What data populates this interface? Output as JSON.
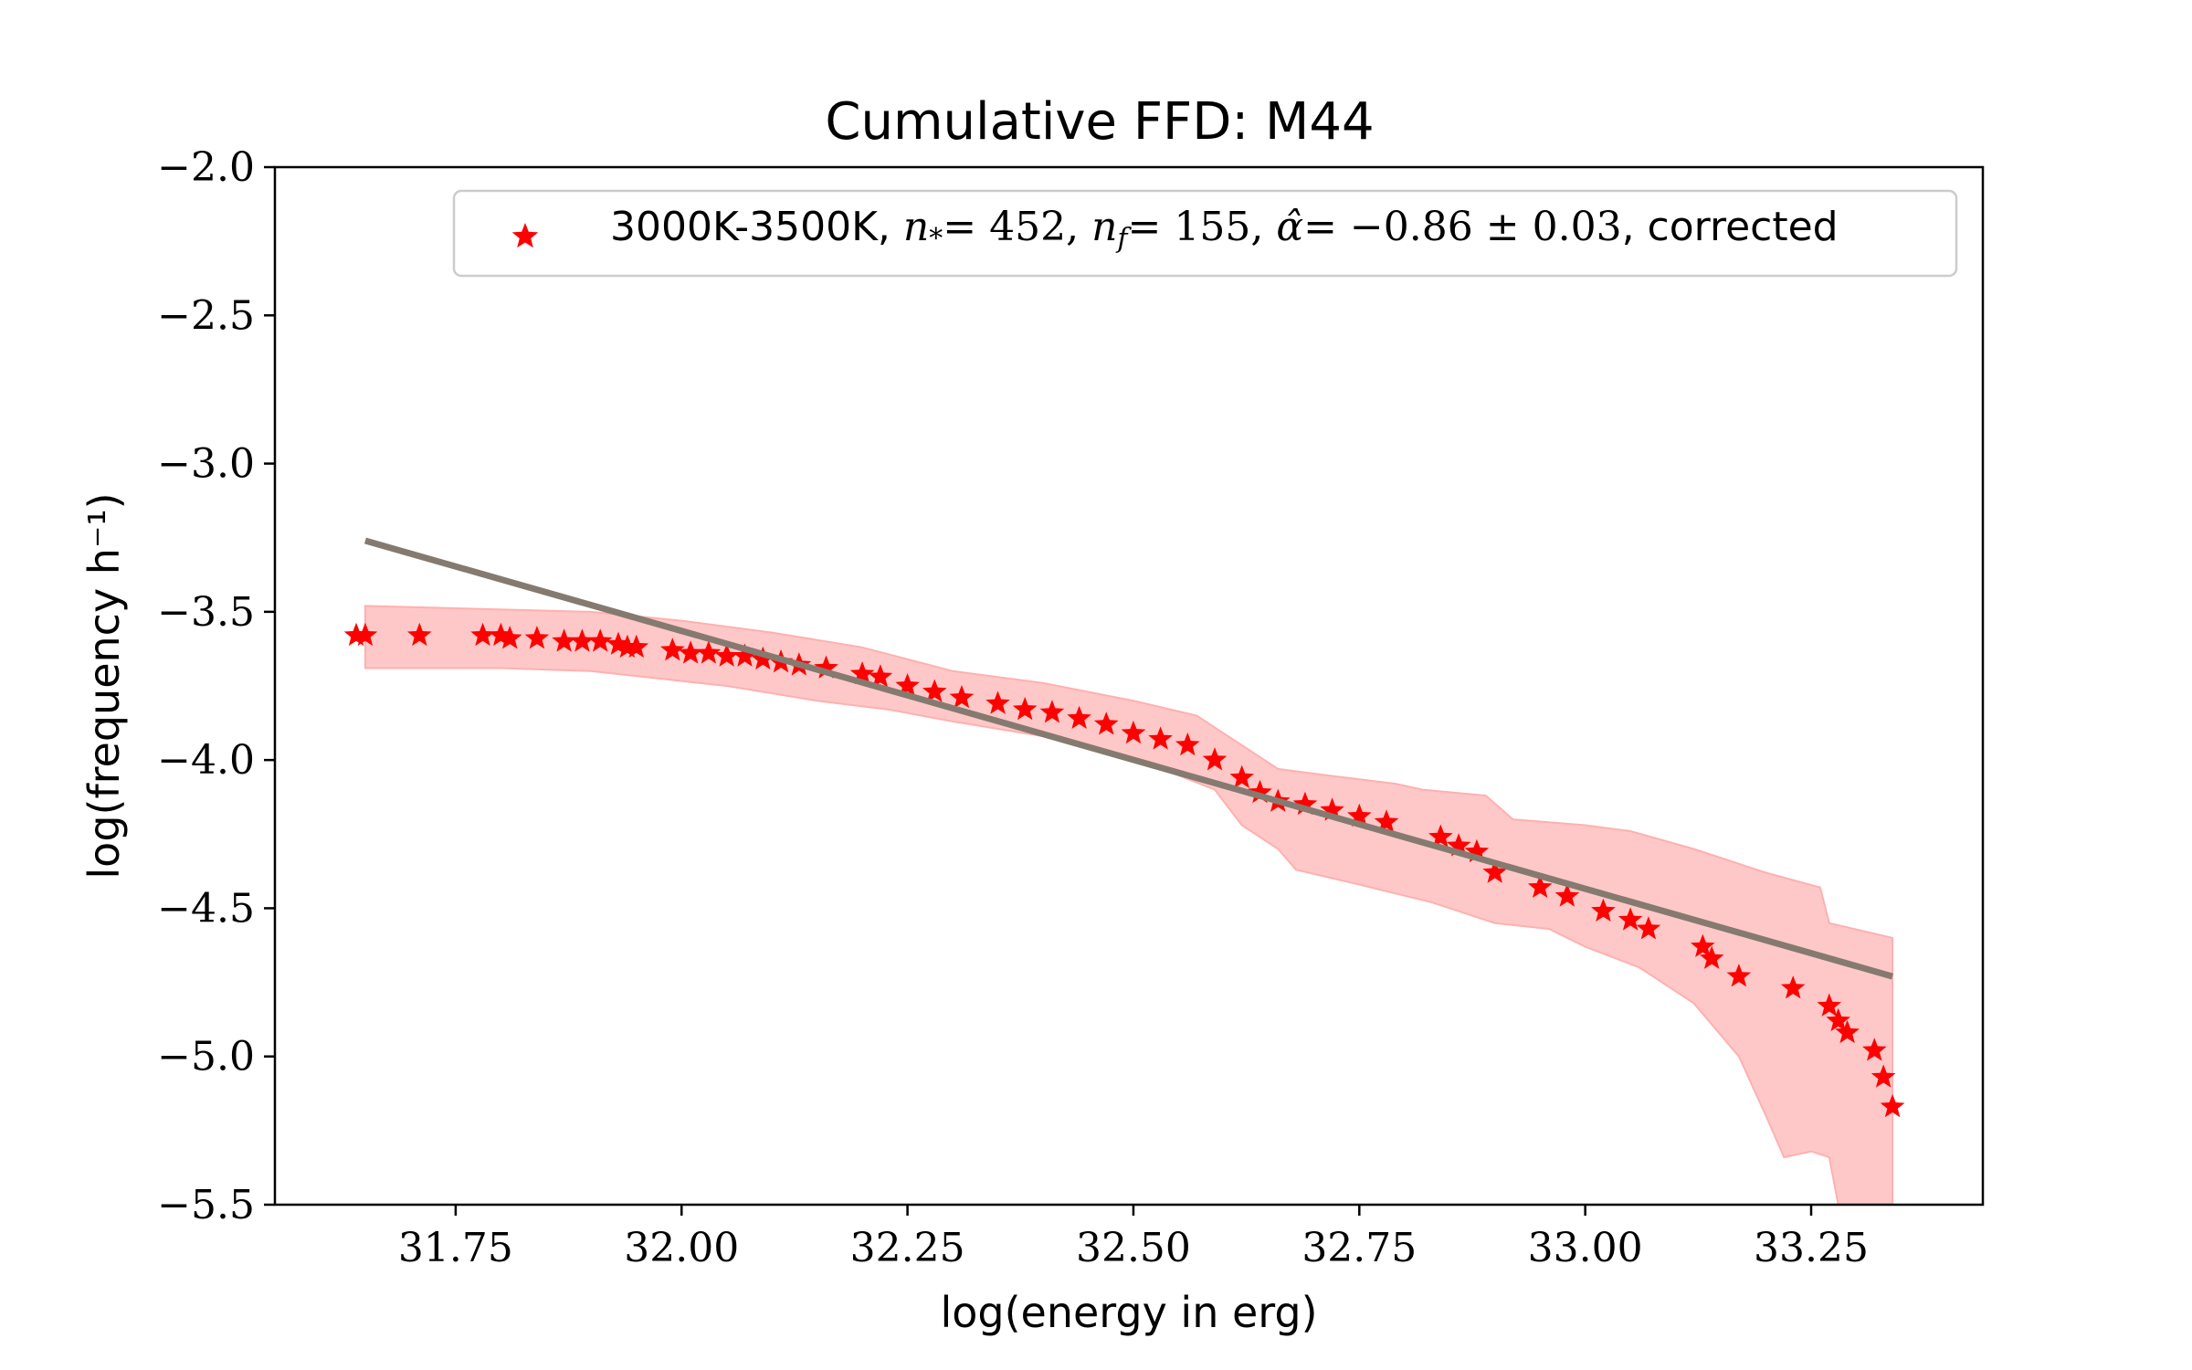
{
  "chart_data": {
    "type": "scatter",
    "title": "Cumulative FFD: M44",
    "xlabel": "log(energy in erg)",
    "ylabel": "log(frequency h⁻¹)",
    "xlim": [
      31.55,
      33.44
    ],
    "ylim": [
      -5.5,
      -2.0
    ],
    "xticks": [
      31.75,
      32.0,
      32.25,
      32.5,
      32.75,
      33.0,
      33.25
    ],
    "xtick_labels": [
      "31.75",
      "32.00",
      "32.25",
      "32.50",
      "32.75",
      "33.00",
      "33.25"
    ],
    "yticks": [
      -2.0,
      -2.5,
      -3.0,
      -3.5,
      -4.0,
      -4.5,
      -5.0,
      -5.5
    ],
    "ytick_labels": [
      "−2.0",
      "−2.5",
      "−3.0",
      "−3.5",
      "−4.0",
      "−4.5",
      "−5.0",
      "−5.5"
    ],
    "grid": false,
    "legend_position": "top-right",
    "legend": {
      "label_prefix": "3000K-3500K, ",
      "n_star_value": "= 452",
      "n_f_value": "= 155",
      "alpha_value": "= −0.86 ± 0.03",
      "label_suffix": ", corrected"
    },
    "series": [
      {
        "name": "3000K-3500K, n* = 452, nf = 155, α̂ = −0.86 ± 0.03, corrected",
        "marker": "star",
        "color": "#ff0000",
        "points": [
          [
            31.64,
            -3.58
          ],
          [
            31.65,
            -3.58
          ],
          [
            31.71,
            -3.58
          ],
          [
            31.78,
            -3.58
          ],
          [
            31.8,
            -3.58
          ],
          [
            31.81,
            -3.59
          ],
          [
            31.84,
            -3.59
          ],
          [
            31.87,
            -3.6
          ],
          [
            31.89,
            -3.6
          ],
          [
            31.91,
            -3.6
          ],
          [
            31.93,
            -3.61
          ],
          [
            31.94,
            -3.62
          ],
          [
            31.95,
            -3.62
          ],
          [
            31.99,
            -3.63
          ],
          [
            32.01,
            -3.64
          ],
          [
            32.03,
            -3.64
          ],
          [
            32.05,
            -3.65
          ],
          [
            32.07,
            -3.65
          ],
          [
            32.09,
            -3.66
          ],
          [
            32.11,
            -3.67
          ],
          [
            32.13,
            -3.68
          ],
          [
            32.16,
            -3.69
          ],
          [
            32.2,
            -3.71
          ],
          [
            32.22,
            -3.72
          ],
          [
            32.25,
            -3.75
          ],
          [
            32.28,
            -3.77
          ],
          [
            32.31,
            -3.79
          ],
          [
            32.35,
            -3.81
          ],
          [
            32.38,
            -3.83
          ],
          [
            32.41,
            -3.84
          ],
          [
            32.44,
            -3.86
          ],
          [
            32.47,
            -3.88
          ],
          [
            32.5,
            -3.91
          ],
          [
            32.53,
            -3.93
          ],
          [
            32.56,
            -3.95
          ],
          [
            32.59,
            -4.0
          ],
          [
            32.62,
            -4.06
          ],
          [
            32.64,
            -4.11
          ],
          [
            32.66,
            -4.14
          ],
          [
            32.69,
            -4.15
          ],
          [
            32.72,
            -4.17
          ],
          [
            32.75,
            -4.19
          ],
          [
            32.78,
            -4.21
          ],
          [
            32.84,
            -4.26
          ],
          [
            32.86,
            -4.29
          ],
          [
            32.88,
            -4.31
          ],
          [
            32.9,
            -4.38
          ],
          [
            32.95,
            -4.43
          ],
          [
            32.98,
            -4.46
          ],
          [
            33.02,
            -4.51
          ],
          [
            33.05,
            -4.54
          ],
          [
            33.07,
            -4.57
          ],
          [
            33.13,
            -4.63
          ],
          [
            33.14,
            -4.67
          ],
          [
            33.17,
            -4.73
          ],
          [
            33.23,
            -4.77
          ],
          [
            33.27,
            -4.83
          ],
          [
            33.28,
            -4.88
          ],
          [
            33.29,
            -4.92
          ],
          [
            33.32,
            -4.98
          ],
          [
            33.33,
            -5.07
          ],
          [
            33.34,
            -5.17
          ]
        ]
      }
    ],
    "fit_line": {
      "color": "#857a70",
      "points": [
        [
          31.65,
          -3.26
        ],
        [
          33.34,
          -4.73
        ]
      ]
    },
    "uncertainty_band": {
      "color": "#ffc8c8",
      "upper": [
        [
          31.65,
          -3.48
        ],
        [
          31.9,
          -3.5
        ],
        [
          32.0,
          -3.53
        ],
        [
          32.1,
          -3.57
        ],
        [
          32.2,
          -3.62
        ],
        [
          32.3,
          -3.7
        ],
        [
          32.4,
          -3.74
        ],
        [
          32.5,
          -3.8
        ],
        [
          32.57,
          -3.85
        ],
        [
          32.62,
          -3.95
        ],
        [
          32.66,
          -4.03
        ],
        [
          32.71,
          -4.05
        ],
        [
          32.79,
          -4.08
        ],
        [
          32.82,
          -4.1
        ],
        [
          32.89,
          -4.12
        ],
        [
          32.92,
          -4.2
        ],
        [
          33.0,
          -4.22
        ],
        [
          33.05,
          -4.24
        ],
        [
          33.12,
          -4.3
        ],
        [
          33.2,
          -4.38
        ],
        [
          33.26,
          -4.43
        ],
        [
          33.27,
          -4.55
        ],
        [
          33.34,
          -4.6
        ]
      ],
      "lower": [
        [
          31.65,
          -3.69
        ],
        [
          31.8,
          -3.69
        ],
        [
          31.9,
          -3.7
        ],
        [
          31.96,
          -3.72
        ],
        [
          32.05,
          -3.75
        ],
        [
          32.15,
          -3.8
        ],
        [
          32.23,
          -3.83
        ],
        [
          32.3,
          -3.87
        ],
        [
          32.4,
          -3.92
        ],
        [
          32.48,
          -3.98
        ],
        [
          32.54,
          -4.04
        ],
        [
          32.59,
          -4.1
        ],
        [
          32.62,
          -4.22
        ],
        [
          32.66,
          -4.3
        ],
        [
          32.68,
          -4.37
        ],
        [
          32.75,
          -4.42
        ],
        [
          32.83,
          -4.48
        ],
        [
          32.9,
          -4.55
        ],
        [
          32.96,
          -4.57
        ],
        [
          33.0,
          -4.63
        ],
        [
          33.06,
          -4.7
        ],
        [
          33.12,
          -4.82
        ],
        [
          33.17,
          -5.0
        ],
        [
          33.2,
          -5.2
        ],
        [
          33.22,
          -5.34
        ],
        [
          33.25,
          -5.32
        ],
        [
          33.27,
          -5.34
        ],
        [
          33.28,
          -5.5
        ],
        [
          33.34,
          -5.5
        ]
      ]
    }
  }
}
